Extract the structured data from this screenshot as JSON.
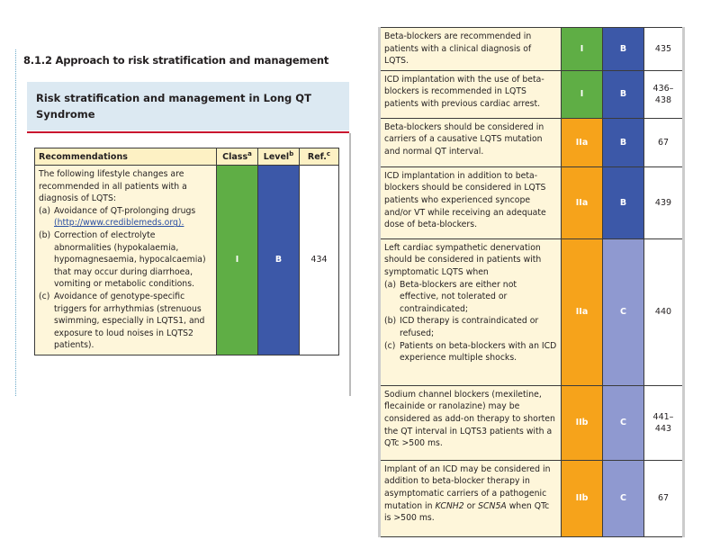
{
  "section": {
    "heading": "8.1.2 Approach to risk stratification and management"
  },
  "box": {
    "title": "Risk stratification and management in Long QT Syndrome"
  },
  "table_header": [
    {
      "text": "Recommendations"
    },
    {
      "text": "Class",
      "sup": "a"
    },
    {
      "text": "Level",
      "sup": "b"
    },
    {
      "text": "Ref.",
      "sup": "c"
    }
  ],
  "left_rows": [
    {
      "text": "The following lifestyle changes are recommended in all patients with a diagnosis of LQTS:",
      "items": [
        {
          "label": "(a)",
          "text": "Avoidance of QT-prolonging drugs",
          "link": "(http://www.crediblemeds.org)."
        },
        {
          "label": "(b)",
          "text": "Correction of electrolyte abnormalities (hypokalaemia, hypomagnesaemia, hypocalcaemia) that may occur during diarrhoea, vomiting or metabolic conditions."
        },
        {
          "label": "(c)",
          "text": "Avoidance of genotype-specific triggers for arrhythmias (strenuous swimming, especially in LQTS1, and exposure to loud noises in LQTS2 patients)."
        }
      ],
      "class": "I",
      "level": "B",
      "ref": "434"
    }
  ],
  "right_rows": [
    {
      "text": "Beta-blockers are recommended in patients with a clinical diagnosis of LQTS.",
      "class": "I",
      "level": "B",
      "ref": "435"
    },
    {
      "text": "ICD implantation with the use of beta-blockers is recommended in LQTS patients with previous cardiac arrest.",
      "class": "I",
      "level": "B",
      "ref": "436–438"
    },
    {
      "text": "Beta-blockers should be considered in carriers of a causative LQTS mutation and normal QT interval.",
      "class": "IIa",
      "level": "B",
      "ref": "67"
    },
    {
      "text": "ICD implantation in addition to beta-blockers should be considered in LQTS patients who experienced syncope and/or VT while receiving an adequate dose of beta-blockers.",
      "class": "IIa",
      "level": "B",
      "ref": "439"
    },
    {
      "text": "Left cardiac sympathetic denervation should be considered in patients with symptomatic LQTS when",
      "items": [
        {
          "label": "(a)",
          "text": "Beta-blockers are either not effective, not tolerated or contraindicated;"
        },
        {
          "label": "(b)",
          "text": "ICD therapy is contraindicated or refused;"
        },
        {
          "label": "(c)",
          "text": "Patients on beta-blockers with an ICD experience multiple shocks."
        }
      ],
      "class": "IIa",
      "level": "C",
      "ref": "440"
    },
    {
      "text": "Sodium channel blockers (mexiletine, flecainide or ranolazine) may be considered as add-on therapy to shorten the QT interval in LQTS3 patients with a QTc >500 ms.",
      "class": "IIb",
      "level": "C",
      "ref": "441–443"
    },
    {
      "parts": [
        {
          "text": "Implant of an ICD may be considered in addition to beta-blocker therapy in asymptomatic carriers of a pathogenic mutation in "
        },
        {
          "text": "KCNH2",
          "italic": true
        },
        {
          "text": " or "
        },
        {
          "text": "SCN5A",
          "italic": true
        },
        {
          "text": " when QTc is >500 ms."
        }
      ],
      "class": "IIb",
      "level": "C",
      "ref": "67"
    }
  ]
}
